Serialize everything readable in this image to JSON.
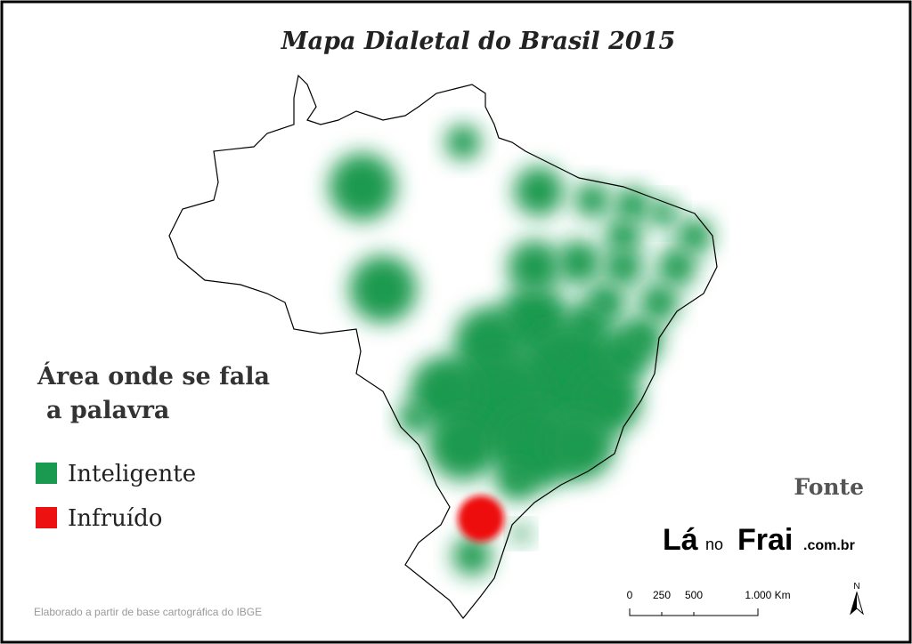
{
  "title": "Mapa Dialetal do Brasil 2015",
  "legend": {
    "title_lines": [
      "Área onde se fala",
      "a palavra"
    ],
    "items": [
      {
        "label": "Inteligente",
        "color": "#1a9a50"
      },
      {
        "label": "Infruído",
        "color": "#ee1111"
      }
    ]
  },
  "source": {
    "label": "Fonte",
    "logo": [
      "Lá",
      "no",
      "Frai",
      ".com.br"
    ]
  },
  "scale_bar": {
    "labels": [
      "0",
      "250",
      "500",
      "1.000 Km"
    ]
  },
  "north_label": "N",
  "credit": "Elaborado a partir de base cartográfica do IBGE"
}
